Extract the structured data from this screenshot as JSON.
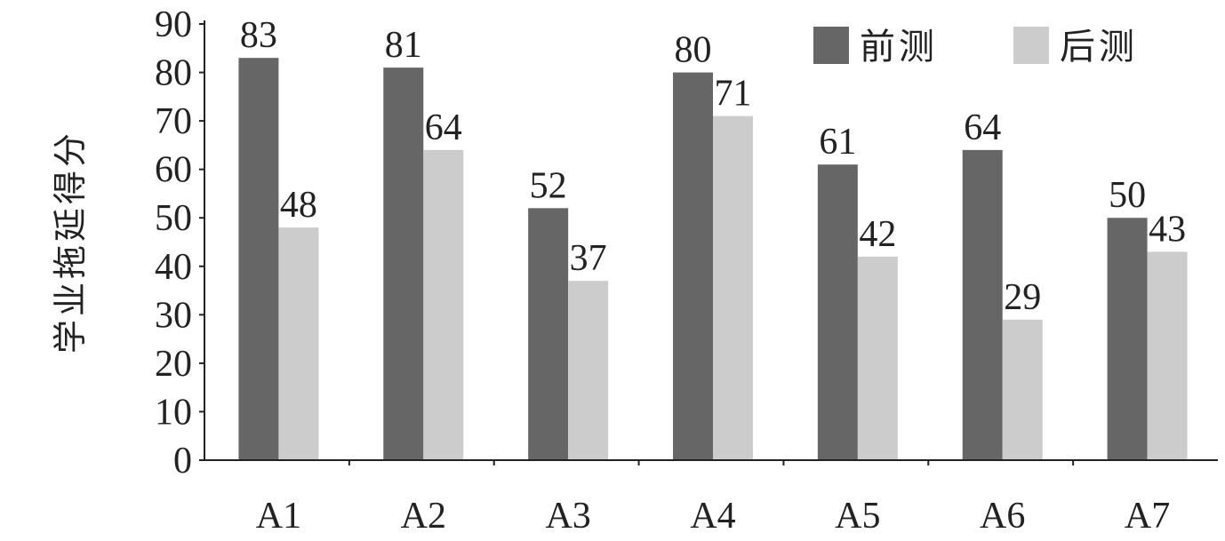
{
  "chart_data": {
    "type": "bar",
    "title": "",
    "xlabel": "",
    "ylabel": "学业拖延得分",
    "ylim": [
      0,
      90
    ],
    "yticks": [
      0,
      10,
      20,
      30,
      40,
      50,
      60,
      70,
      80,
      90
    ],
    "grid": false,
    "legend_position": "top-right",
    "categories": [
      "A1",
      "A2",
      "A3",
      "A4",
      "A5",
      "A6",
      "A7"
    ],
    "series": [
      {
        "name": "前测",
        "color": "#666666",
        "values": [
          83,
          81,
          52,
          80,
          61,
          64,
          50
        ]
      },
      {
        "name": "后测",
        "color": "#cccccc",
        "values": [
          48,
          64,
          37,
          71,
          42,
          29,
          43
        ]
      }
    ]
  }
}
